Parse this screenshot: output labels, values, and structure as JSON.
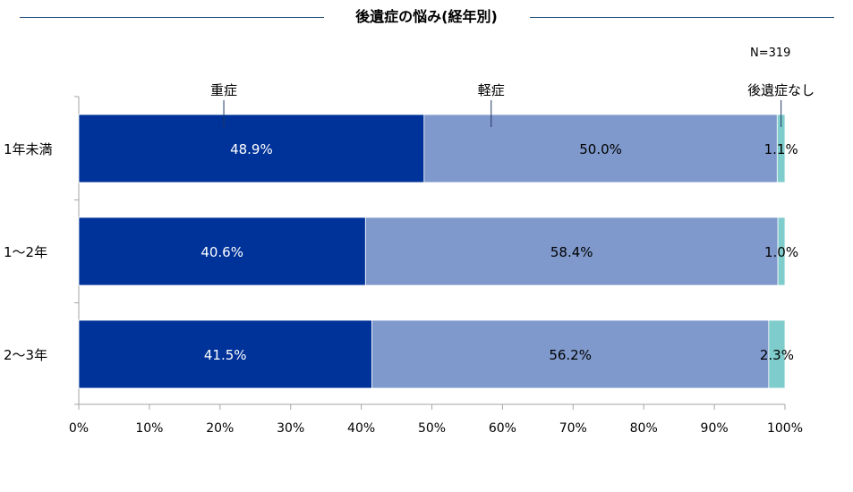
{
  "header": {
    "title": "後遺症の悩み(経年別)",
    "n_label": "N=319"
  },
  "chart_data": {
    "type": "bar",
    "orientation": "horizontal",
    "stacked": "percent",
    "categories": [
      "1年未満",
      "1～2年",
      "2～3年"
    ],
    "series": [
      {
        "name": "重症",
        "values": [
          48.9,
          40.6,
          41.5
        ],
        "labels": [
          "48.9%",
          "40.6%",
          "41.5%"
        ],
        "color": "#003399",
        "label_color": "#ffffff"
      },
      {
        "name": "軽症",
        "values": [
          50.0,
          58.4,
          56.2
        ],
        "labels": [
          "50.0%",
          "58.4%",
          "56.2%"
        ],
        "color": "#7f99cc",
        "label_color": "#000000"
      },
      {
        "name": "後遺症なし",
        "values": [
          1.1,
          1.0,
          2.3
        ],
        "labels": [
          "1.1%",
          "1.0%",
          "2.3%"
        ],
        "color": "#7fcccc",
        "label_color": "#000000"
      }
    ],
    "x_ticks": [
      "0%",
      "10%",
      "20%",
      "30%",
      "40%",
      "50%",
      "60%",
      "70%",
      "80%",
      "90%",
      "100%"
    ],
    "xlim": [
      0,
      100
    ],
    "grid": false,
    "legend": "series names above the top bar"
  }
}
